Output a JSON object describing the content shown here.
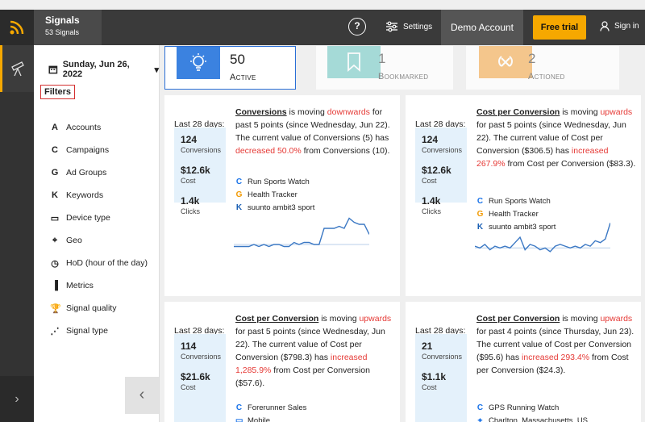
{
  "app": {
    "name": "Signals",
    "count_label": "53 Signals"
  },
  "header": {
    "settings_label": "Settings",
    "account_label": "Demo Account",
    "trial_label": "Free trial",
    "signin_label": "Sign in",
    "help_glyph": "?"
  },
  "colors": {
    "accent": "#f6a800",
    "primary": "#2a6fd6",
    "up_down": "#e53935"
  },
  "rail": {
    "collapse_glyph": "‹",
    "expand_glyph": "›"
  },
  "panel": {
    "date": "Sunday, Jun 26, 2022",
    "filters_label": "Filters",
    "items": [
      {
        "label": "Accounts",
        "icon": "accounts-icon",
        "glyph": "A"
      },
      {
        "label": "Campaigns",
        "icon": "campaigns-icon",
        "glyph": "C"
      },
      {
        "label": "Ad Groups",
        "icon": "ad-groups-icon",
        "glyph": "G"
      },
      {
        "label": "Keywords",
        "icon": "keywords-icon",
        "glyph": "K"
      },
      {
        "label": "Device type",
        "icon": "device-type-icon",
        "glyph": "▭"
      },
      {
        "label": "Geo",
        "icon": "geo-icon",
        "glyph": "⌖"
      },
      {
        "label": "HoD (hour of the day)",
        "icon": "clock-icon",
        "glyph": "◷"
      },
      {
        "label": "Metrics",
        "icon": "metrics-icon",
        "glyph": "▐"
      },
      {
        "label": "Signal quality",
        "icon": "trophy-icon",
        "glyph": "🏆"
      },
      {
        "label": "Signal type",
        "icon": "signal-type-icon",
        "glyph": "⋰"
      }
    ]
  },
  "tabs": [
    {
      "value": "50",
      "label": "Active",
      "icon": "bulb-icon"
    },
    {
      "value": "1",
      "label": "Bookmarked",
      "icon": "bookmark-icon"
    },
    {
      "value": "2",
      "label": "Actioned",
      "icon": "actioned-icon"
    }
  ],
  "cards": [
    {
      "period_label": "Last 28 days:",
      "metrics": [
        {
          "value": "124",
          "label": "Conversions"
        },
        {
          "value": "$12.6k",
          "label": "Cost"
        },
        {
          "value": "1.4k",
          "label": "Clicks"
        }
      ],
      "metric_name": "Conversions",
      "direction": "downwards",
      "line1": " is moving ",
      "line2": " for past 5 points (since Wednesday, Jun 22). The current value of Conversions (5) has ",
      "change": "decreased 50.0%",
      "line3": " from Conversions (10).",
      "entities": [
        {
          "glyph": "C",
          "name": "Run Sports Watch",
          "icon": "campaign-icon"
        },
        {
          "glyph": "G",
          "name": "Health Tracker",
          "icon": "ad-group-icon"
        },
        {
          "glyph": "K",
          "name": "suunto ambit3 sport",
          "icon": "keyword-icon"
        }
      ],
      "spark": [
        16,
        16,
        16,
        16,
        15,
        16,
        15,
        16,
        15,
        15,
        16,
        16,
        14,
        15,
        14,
        14,
        15,
        15,
        7,
        7,
        7,
        6,
        7,
        2,
        4,
        5,
        5,
        10
      ],
      "baseline": 15
    },
    {
      "period_label": "Last 28 days:",
      "metrics": [
        {
          "value": "124",
          "label": "Conversions"
        },
        {
          "value": "$12.6k",
          "label": "Cost"
        },
        {
          "value": "1.4k",
          "label": "Clicks"
        }
      ],
      "metric_name": "Cost per Conversion",
      "direction": "upwards",
      "line1": " is moving ",
      "line2": " for past 5 points (since Wednesday, Jun 22). The current value of Cost per Conversion ($306.5) has ",
      "change": "increased 267.9%",
      "line3": " from Cost per Conversion ($83.3).",
      "entities": [
        {
          "glyph": "C",
          "name": "Run Sports Watch",
          "icon": "campaign-icon"
        },
        {
          "glyph": "G",
          "name": "Health Tracker",
          "icon": "ad-group-icon"
        },
        {
          "glyph": "K",
          "name": "suunto ambit3 sport",
          "icon": "keyword-icon"
        }
      ],
      "spark": [
        15,
        16,
        14,
        17,
        15,
        16,
        15,
        16,
        13,
        10,
        17,
        14,
        15,
        17,
        16,
        18,
        15,
        14,
        15,
        16,
        15,
        16,
        14,
        15,
        12,
        13,
        11,
        2
      ],
      "baseline": 16
    },
    {
      "period_label": "Last 28 days:",
      "metrics": [
        {
          "value": "114",
          "label": "Conversions"
        },
        {
          "value": "$21.6k",
          "label": "Cost"
        }
      ],
      "metric_name": "Cost per Conversion",
      "direction": "upwards",
      "line1": " is moving ",
      "line2": " for past 5 points (since Wednesday, Jun 22). The current value of Cost per Conversion ($798.3) has ",
      "change": "increased 1,285.9%",
      "line3": " from Cost per Conversion ($57.6).",
      "entities": [
        {
          "glyph": "C",
          "name": "Forerunner Sales",
          "icon": "campaign-icon"
        },
        {
          "glyph": "▭",
          "name": "Mobile",
          "icon": "mobile-icon"
        }
      ]
    },
    {
      "period_label": "Last 28 days:",
      "metrics": [
        {
          "value": "21",
          "label": "Conversions"
        },
        {
          "value": "$1.1k",
          "label": "Cost"
        }
      ],
      "metric_name": "Cost per Conversion",
      "direction": "upwards",
      "line1": " is moving ",
      "line2": " for past 4 points (since Thursday, Jun 23). The current value of Cost per Conversion ($95.6) has ",
      "change": "increased 293.4%",
      "line3": " from Cost per Conversion ($24.3).",
      "entities": [
        {
          "glyph": "C",
          "name": "GPS Running Watch",
          "icon": "campaign-icon"
        },
        {
          "glyph": "⌖",
          "name": "Charlton, Massachusetts, US",
          "icon": "location-icon"
        }
      ]
    }
  ]
}
